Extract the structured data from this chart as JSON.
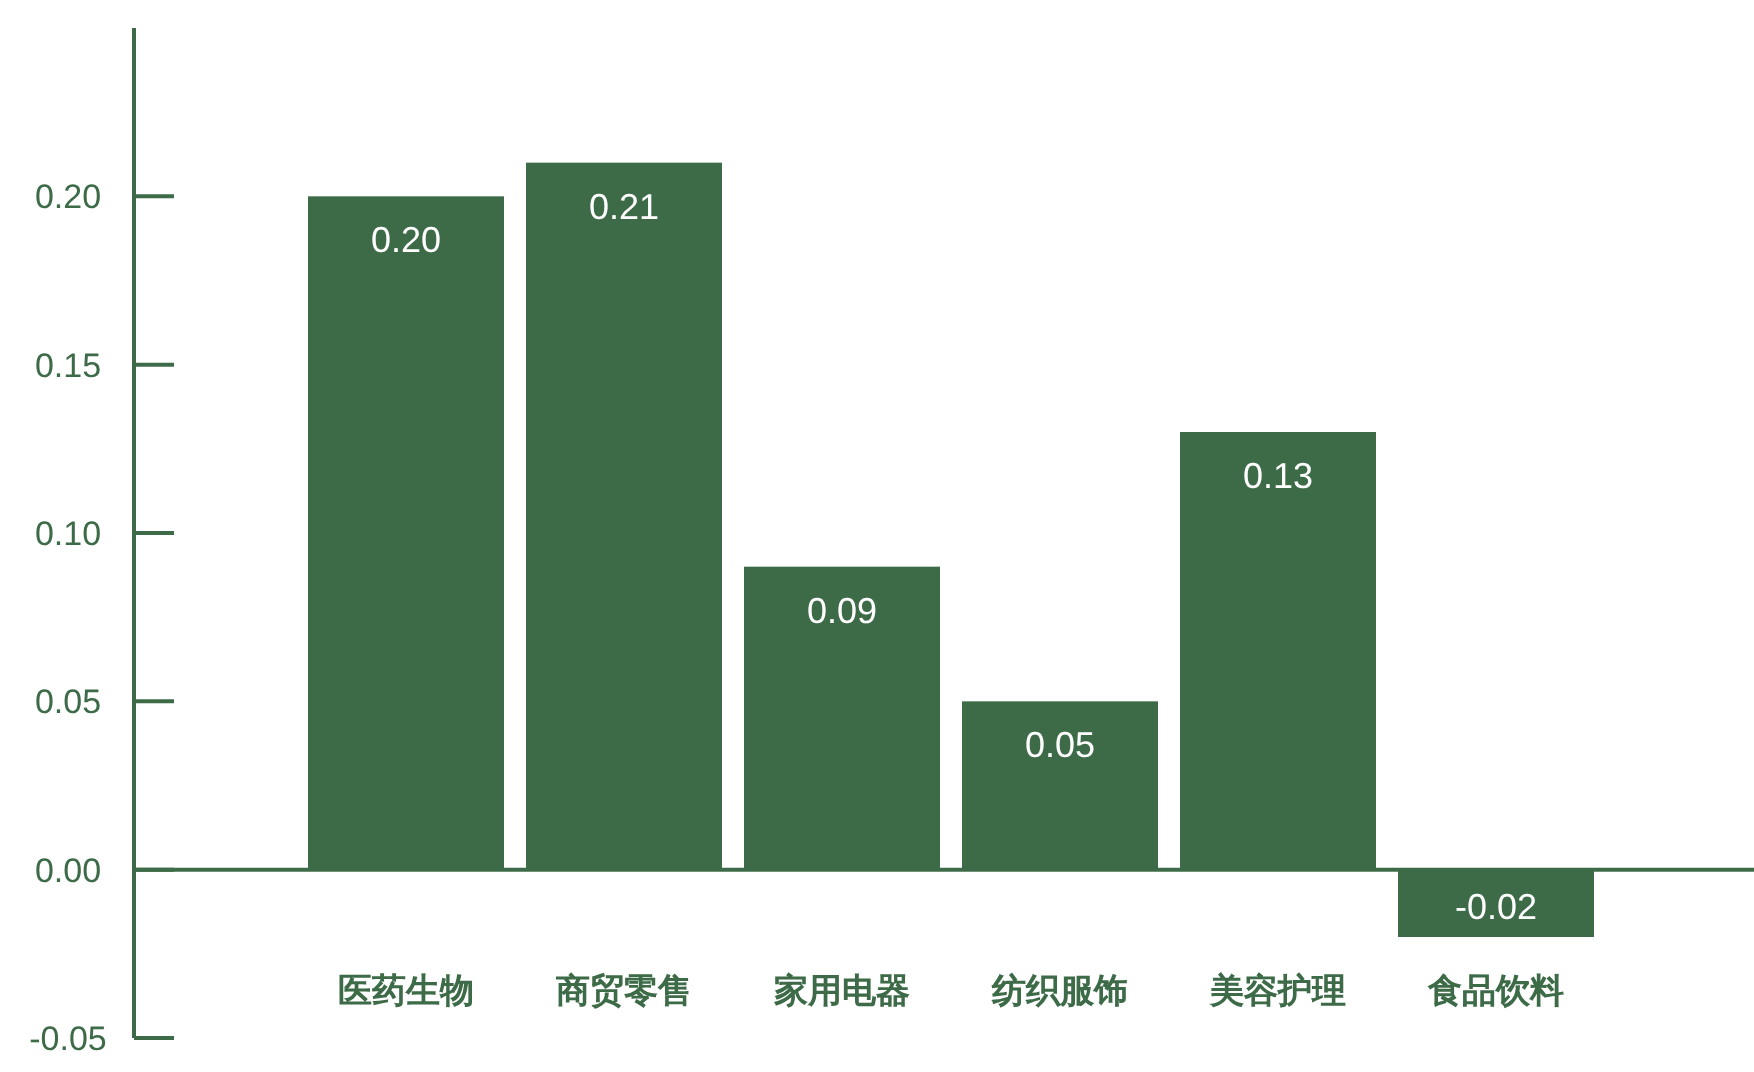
{
  "chart_data": {
    "type": "bar",
    "categories": [
      "医药生物",
      "商贸零售",
      "家用电器",
      "纺织服饰",
      "美容护理",
      "食品饮料"
    ],
    "values": [
      0.2,
      0.21,
      0.09,
      0.05,
      0.13,
      -0.02
    ],
    "value_labels": [
      "0.20",
      "0.21",
      "0.09",
      "0.05",
      "0.13",
      "-0.02"
    ],
    "color": "#3d6b48",
    "ylim": [
      -0.05,
      0.25
    ],
    "ref_lines": [
      {
        "axis": "y",
        "value": 0,
        "color": "#3d6b48"
      }
    ],
    "yticks": [
      {
        "value": -0.05,
        "label": "-0.05"
      },
      {
        "value": 0,
        "label": "0.00"
      },
      {
        "value": 0.05,
        "label": "0.05"
      },
      {
        "value": 0.1,
        "label": "0.10"
      },
      {
        "value": 0.15,
        "label": "0.15"
      },
      {
        "value": 0.2,
        "label": "0.20"
      }
    ]
  }
}
